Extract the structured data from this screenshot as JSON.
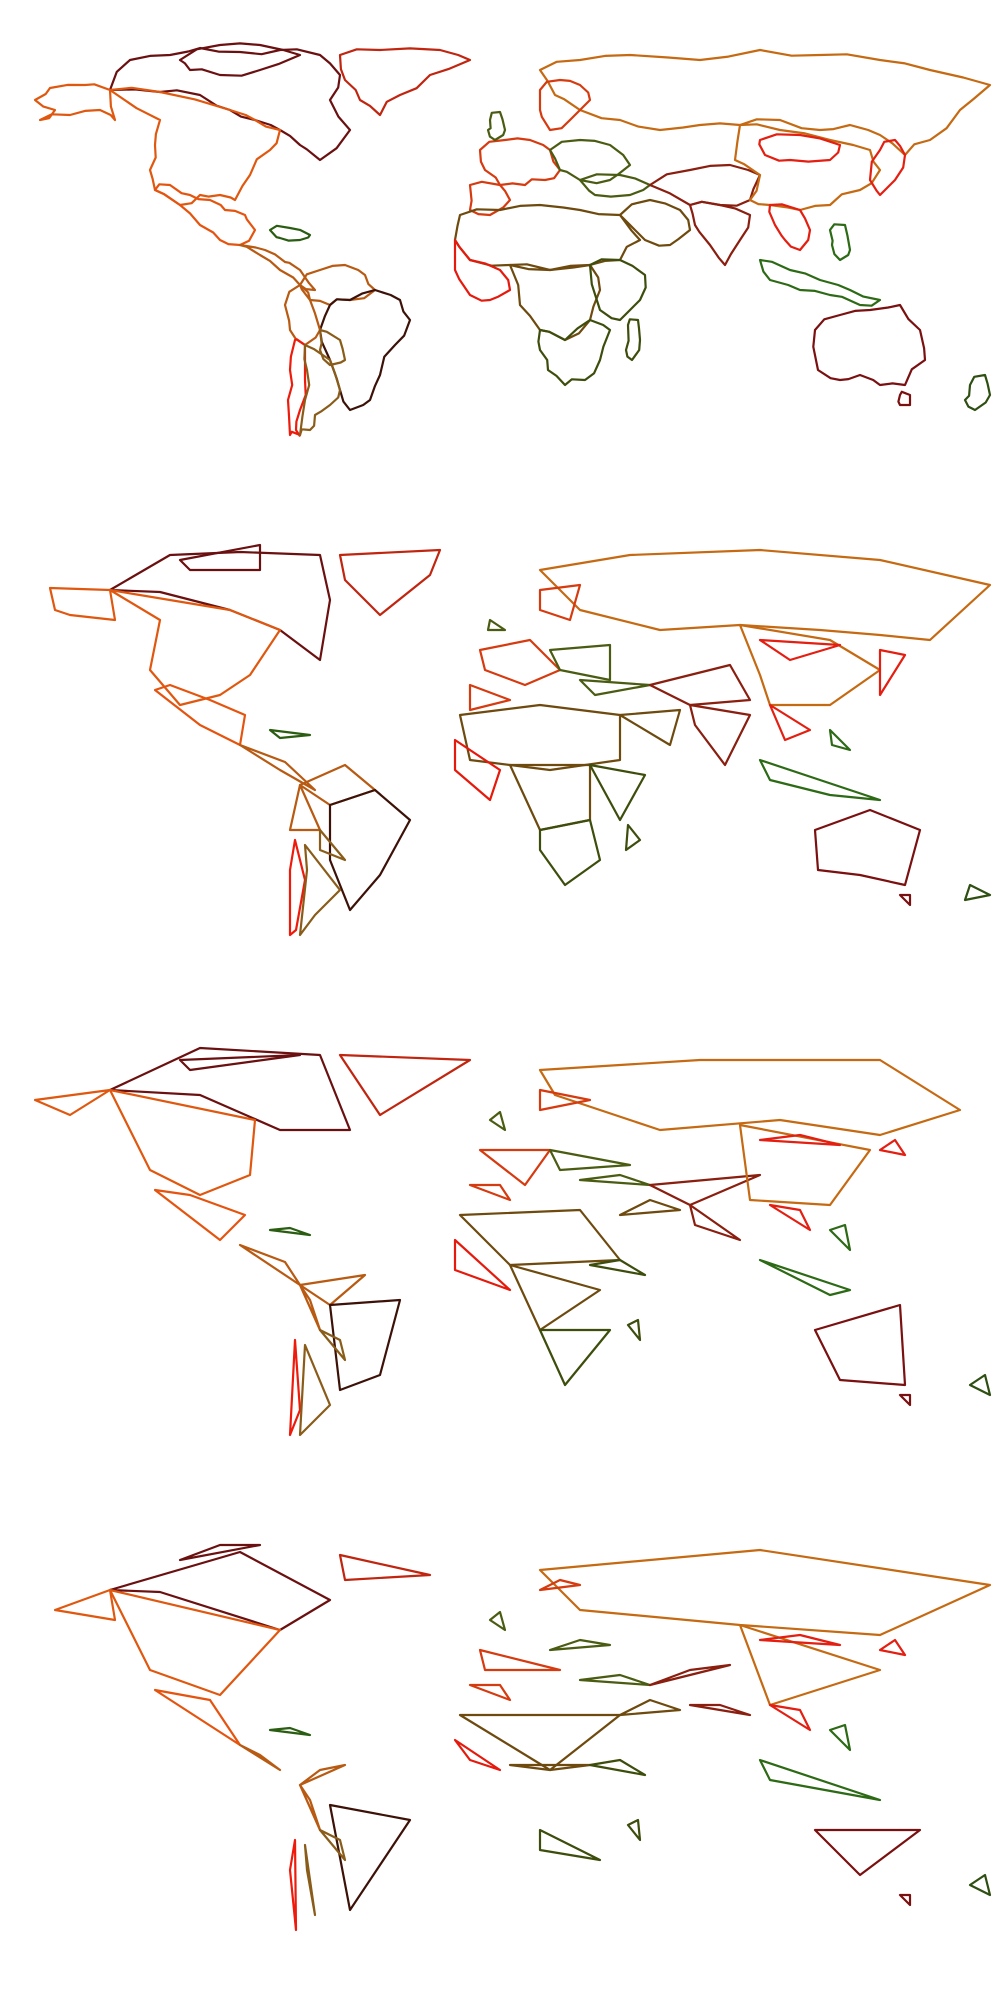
{
  "colors": {
    "canada": "#6b1010",
    "usa": "#e0580f",
    "greenland": "#c0250f",
    "mexico": "#e5540f",
    "central": "#b85a12",
    "caribbean": "#2a5d12",
    "brazil": "#3c1208",
    "chile": "#ee1b0c",
    "argentina": "#8a5c19",
    "russia": "#c56a12",
    "europe_a": "#d63a0f",
    "europe_b": "#4a5c12",
    "africa_a": "#6e4a0e",
    "africa_b": "#e51a0d",
    "africa_c": "#3c4d0c",
    "asia_a": "#8a1e0f",
    "asia_b": "#e41e10",
    "asia_c": "#2d6a15",
    "australia": "#7a1010",
    "newzealand": "#2f4f12",
    "china": "#c56a12"
  },
  "panels": [
    {
      "id": "detail-1",
      "simplify": 1
    },
    {
      "id": "detail-2",
      "simplify": 2
    },
    {
      "id": "detail-3",
      "simplify": 3
    },
    {
      "id": "detail-4",
      "simplify": 4
    }
  ]
}
